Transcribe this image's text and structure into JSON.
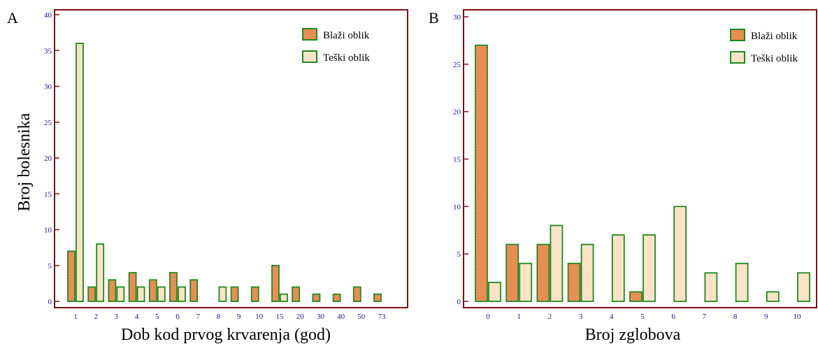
{
  "shared": {
    "ylabel": "Broj bolesnika"
  },
  "colors": {
    "frame": "#7a1218",
    "bar_stroke": "#1e8a1e",
    "mild_fill": "#f3a56c",
    "mild_hatch": "#d9652a",
    "severe_fill": "#fae3c6",
    "tick_text": "#1a1a8c"
  },
  "chart_data": [
    {
      "panel": "A",
      "type": "bar",
      "xlabel": "Dob kod prvog krvarenja (god)",
      "ylim": [
        0,
        40
      ],
      "yticks": [
        0,
        5,
        10,
        15,
        20,
        25,
        30,
        35,
        40
      ],
      "categories": [
        "1",
        "2",
        "3",
        "4",
        "5",
        "6",
        "7",
        "8",
        "9",
        "10",
        "15",
        "20",
        "30",
        "40",
        "50",
        "73"
      ],
      "series": [
        {
          "name": "Blaži oblik",
          "values": [
            7,
            2,
            3,
            4,
            3,
            4,
            3,
            0,
            2,
            2,
            5,
            2,
            1,
            1,
            2,
            1
          ]
        },
        {
          "name": "Teški oblik",
          "values": [
            36,
            8,
            2,
            2,
            2,
            2,
            0,
            2,
            0,
            0,
            1,
            0,
            0,
            0,
            0,
            0
          ]
        }
      ],
      "legend": "top-right"
    },
    {
      "panel": "B",
      "type": "bar",
      "xlabel": "Broj zglobova",
      "ylim": [
        0,
        30
      ],
      "yticks": [
        0,
        5,
        10,
        15,
        20,
        25,
        30
      ],
      "categories": [
        "0",
        "1",
        "2",
        "3",
        "4",
        "5",
        "6",
        "7",
        "8",
        "9",
        "10"
      ],
      "series": [
        {
          "name": "Blaži oblik",
          "values": [
            27,
            6,
            6,
            4,
            0,
            1,
            0,
            0,
            0,
            0,
            0
          ]
        },
        {
          "name": "Teški oblik",
          "values": [
            2,
            4,
            8,
            6,
            7,
            7,
            10,
            3,
            4,
            1,
            3
          ]
        }
      ],
      "legend": "top-right"
    }
  ]
}
